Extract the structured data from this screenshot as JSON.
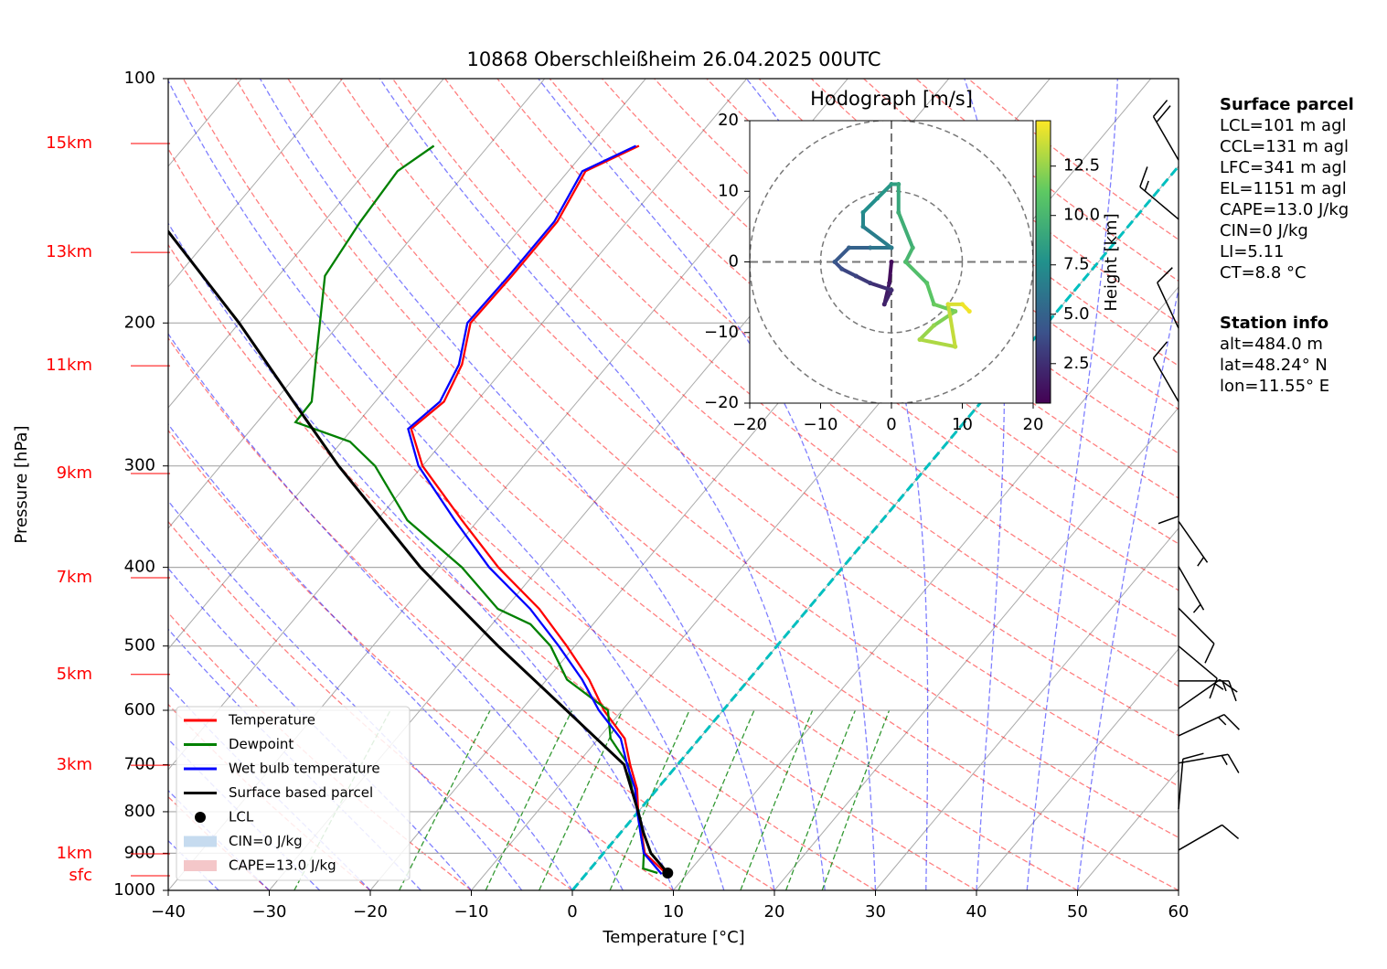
{
  "chart_data": {
    "type": "skewt",
    "title": "10868 Oberschleißheim 26.04.2025 00UTC",
    "x_label": "Temperature [°C]",
    "y_label": "Pressure [hPa]",
    "xlim": [
      -40,
      60
    ],
    "xticks": [
      {
        "value": -40,
        "label": "−40"
      },
      {
        "value": -30,
        "label": "−30"
      },
      {
        "value": -20,
        "label": "−20"
      },
      {
        "value": -10,
        "label": "−10"
      },
      0,
      10,
      20,
      30,
      40,
      50,
      60
    ],
    "ylim": [
      1000,
      100
    ],
    "yticks": [
      100,
      200,
      300,
      400,
      500,
      600,
      700,
      800,
      900,
      1000
    ],
    "log_y": true,
    "grid": true,
    "height_ticks": [
      {
        "value": 120.2,
        "label": "15km"
      },
      {
        "value": 163.7,
        "label": "13km"
      },
      {
        "value": 225.8,
        "label": "11km"
      },
      {
        "value": 306.5,
        "label": "9km"
      },
      {
        "value": 412,
        "label": "7km"
      },
      {
        "value": 542,
        "label": "5km"
      },
      {
        "value": 701.2,
        "label": "3km"
      },
      {
        "value": 901.5,
        "label": "1km"
      },
      {
        "value": 959.3,
        "label": "sfc"
      }
    ],
    "height_tick_color": "#ff0000",
    "freezing_isotherm": {
      "value": 0,
      "color": "#00bfbf"
    },
    "series": [
      {
        "name": "Temperature",
        "color": "#ff0000",
        "pressure": [
          955,
          900,
          850,
          800,
          750,
          700,
          650,
          600,
          550,
          500,
          450,
          400,
          350,
          300,
          270,
          250,
          225,
          200,
          175,
          150,
          130,
          121
        ],
        "values": [
          8.0,
          4.1,
          2.1,
          0.0,
          -2.0,
          -4.7,
          -7.4,
          -11.8,
          -15.8,
          -20.8,
          -26.6,
          -34.1,
          -41.6,
          -50.0,
          -54.2,
          -53.2,
          -54.5,
          -57.1,
          -56.9,
          -56.9,
          -58.3,
          -55.1
        ]
      },
      {
        "name": "Dewpoint",
        "color": "#008000",
        "pressure": [
          952,
          940,
          900,
          850,
          800,
          750,
          700,
          650,
          600,
          550,
          500,
          470,
          450,
          400,
          350,
          300,
          280,
          265,
          250,
          225,
          200,
          175,
          150,
          130,
          121
        ],
        "values": [
          7.0,
          5.2,
          4.0,
          2.0,
          0.0,
          -2.5,
          -4.9,
          -8.8,
          -11.4,
          -18.0,
          -22.4,
          -26.2,
          -30.7,
          -37.7,
          -47.0,
          -54.7,
          -59.2,
          -66.2,
          -66.3,
          -69.0,
          -72.0,
          -75.4,
          -76.4,
          -76.9,
          -75.4
        ]
      },
      {
        "name": "Wet bulb temperature",
        "color": "#0000ff",
        "pressure": [
          955,
          900,
          850,
          800,
          750,
          700,
          650,
          600,
          550,
          500,
          450,
          400,
          350,
          300,
          270,
          250,
          225,
          200,
          175,
          150,
          130,
          121
        ],
        "values": [
          7.5,
          4.0,
          2.0,
          -0.1,
          -2.2,
          -5.0,
          -7.8,
          -12.3,
          -16.5,
          -21.6,
          -27.5,
          -35.0,
          -42.3,
          -50.4,
          -54.5,
          -53.6,
          -54.8,
          -57.4,
          -57.2,
          -57.2,
          -58.6,
          -55.4
        ]
      },
      {
        "name": "Surface based parcel",
        "color": "#000000",
        "pressure": [
          952,
          900,
          850,
          800,
          700,
          600,
          500,
          400,
          300,
          250,
          200,
          154
        ],
        "values": [
          8.0,
          4.7,
          2.3,
          0.0,
          -5.3,
          -15.5,
          -27.6,
          -41.8,
          -58.3,
          -68.1,
          -80.0,
          -94.7
        ]
      }
    ],
    "lcl": {
      "name": "LCL",
      "pressure": 952,
      "temperature": 8.0,
      "color": "#000000"
    },
    "cin_label": "CIN=0 J/kg",
    "cin_color": "#c6dbef",
    "cape_label": "CAPE=13.0 J/kg",
    "cape_color": "#f4c7c9",
    "legend": "lower left",
    "wind": {
      "pressure": [
        892,
        794,
        697,
        645,
        597,
        552,
        500,
        449,
        399,
        351,
        300,
        250,
        203,
        149,
        126
      ],
      "direction": [
        60,
        5,
        80,
        65,
        55,
        90,
        130,
        135,
        150,
        145,
        180,
        330,
        335,
        310,
        330
      ],
      "speed": [
        10,
        10,
        15,
        15,
        15,
        15,
        10,
        10,
        5,
        5,
        10,
        10,
        10,
        15,
        20
      ]
    },
    "hodograph": {
      "title": "Hodograph [m/s]",
      "xlim": [
        -20,
        20
      ],
      "ylim": [
        -20,
        20
      ],
      "xticks": [
        {
          "value": -20,
          "label": "−20"
        },
        {
          "value": -10,
          "label": "−10"
        },
        0,
        10,
        20
      ],
      "yticks": [
        {
          "value": -20,
          "label": "−20"
        },
        {
          "value": -10,
          "label": "−10"
        },
        0,
        10,
        20
      ],
      "u": [
        0,
        -0.3,
        -1,
        0,
        -3,
        -5,
        -7,
        -8,
        -6,
        -3,
        0,
        -4,
        -4,
        -2,
        0,
        1,
        1,
        3,
        2,
        5,
        6,
        9,
        6,
        4,
        9,
        8,
        10,
        11
      ],
      "v": [
        0,
        -3,
        -6,
        -4,
        -3,
        -2,
        -1,
        0,
        2,
        2,
        2,
        5,
        7,
        9,
        11,
        11,
        7,
        2,
        0,
        -3,
        -6,
        -7,
        -9,
        -11,
        -12,
        -6,
        -6,
        -7
      ],
      "height": [
        0.5,
        1,
        1.5,
        2,
        2.5,
        3,
        3.5,
        4,
        4.5,
        5,
        6,
        6.5,
        7,
        7.5,
        8,
        8.5,
        9,
        9.5,
        10,
        10.5,
        11,
        11.5,
        12,
        12.5,
        13,
        13.5,
        14,
        14.5
      ],
      "colorbar_label": "Height [km]",
      "clim": [
        0.5,
        14.8
      ],
      "cticks": [
        2.5,
        {
          "value": 5,
          "label": "5.0"
        },
        7.5,
        {
          "value": 10,
          "label": "10.0"
        },
        12.5
      ]
    }
  },
  "info": {
    "surface_parcel": {
      "title": "Surface parcel",
      "lines": [
        "LCL=101 m agl",
        "CCL=131 m agl",
        "LFC=341 m agl",
        "EL=1151 m agl",
        "CAPE=13.0 J/kg",
        "CIN=0 J/kg",
        "LI=5.11",
        "CT=8.8 °C"
      ]
    },
    "station": {
      "title": "Station info",
      "lines": [
        "alt=484.0 m",
        "lat=48.24° N",
        "lon=11.55° E"
      ]
    }
  }
}
